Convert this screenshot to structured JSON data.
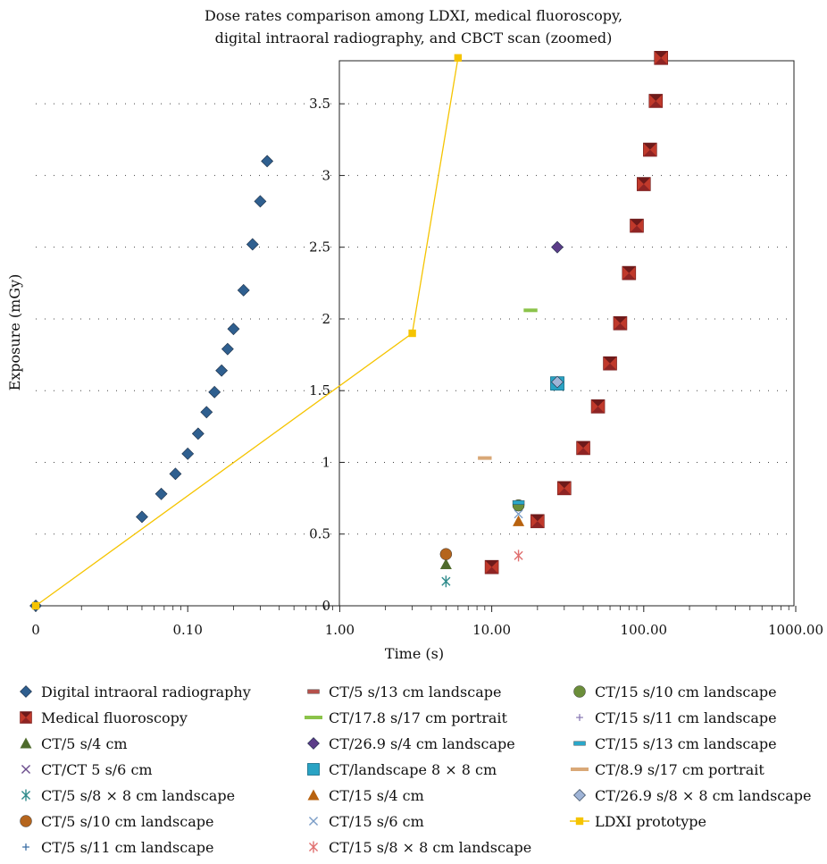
{
  "chart_data": {
    "type": "scatter",
    "title_lines": [
      "Dose rates comparison among LDXI, medical fluoroscopy,",
      "digital intraoral radiography, and CBCT scan (zoomed)"
    ],
    "xlabel": "Time (s)",
    "ylabel": "Exposure (mGy)",
    "x_scale": "log",
    "xlim": [
      0,
      1000
    ],
    "ylim": [
      0,
      3.8
    ],
    "x_ticks": [
      "0",
      "0.10",
      "1.00",
      "10.00",
      "100.00",
      "1000.00"
    ],
    "y_ticks": [
      "0",
      "0.5",
      "1",
      "1.5",
      "2",
      "2.5",
      "3",
      "3.5"
    ],
    "grid": "horizontal dotted",
    "legend_position": "bottom",
    "series": [
      {
        "name": "Digital intraoral radiography",
        "marker": "diamond",
        "color": "#2f5f8f",
        "points": [
          [
            0,
            0
          ],
          [
            0.05,
            0.62
          ],
          [
            0.067,
            0.78
          ],
          [
            0.083,
            0.92
          ],
          [
            0.1,
            1.06
          ],
          [
            0.117,
            1.2
          ],
          [
            0.133,
            1.35
          ],
          [
            0.15,
            1.49
          ],
          [
            0.167,
            1.64
          ],
          [
            0.183,
            1.79
          ],
          [
            0.2,
            1.93
          ],
          [
            0.233,
            2.2
          ],
          [
            0.267,
            2.52
          ],
          [
            0.3,
            2.82
          ],
          [
            0.333,
            3.1
          ]
        ]
      },
      {
        "name": "Medical fluoroscopy",
        "marker": "bowtie",
        "color": "#c0392b",
        "points": [
          [
            10,
            0.27
          ],
          [
            20,
            0.59
          ],
          [
            30,
            0.82
          ],
          [
            40,
            1.1
          ],
          [
            50,
            1.39
          ],
          [
            60,
            1.69
          ],
          [
            70,
            1.97
          ],
          [
            80,
            2.32
          ],
          [
            90,
            2.65
          ],
          [
            100,
            2.94
          ],
          [
            110,
            3.18
          ],
          [
            120,
            3.52
          ],
          [
            130,
            3.82
          ]
        ]
      },
      {
        "name": "CT/5 s/4 cm",
        "marker": "triangle",
        "color": "#4e6b2c",
        "points": [
          [
            5,
            0.29
          ]
        ]
      },
      {
        "name": "CT/CT 5 s/6 cm",
        "marker": "x",
        "color": "#6a4c8c",
        "points": []
      },
      {
        "name": "CT/5 s/8 × 8 cm landscape",
        "marker": "asterisk",
        "color": "#2e8b8b",
        "points": [
          [
            5,
            0.17
          ]
        ]
      },
      {
        "name": "CT/5 s/10 cm landscape",
        "marker": "circle",
        "color": "#b5651d",
        "points": [
          [
            5,
            0.36
          ]
        ]
      },
      {
        "name": "CT/5 s/11 cm landscape",
        "marker": "plus",
        "color": "#3a6ea5",
        "points": []
      },
      {
        "name": "CT/5 s/13 cm landscape",
        "marker": "bar",
        "color": "#b5504b",
        "points": []
      },
      {
        "name": "CT/17.8 s/17 cm portrait",
        "marker": "dash",
        "color": "#8bc34a",
        "points": [
          [
            18,
            2.06
          ]
        ]
      },
      {
        "name": "CT/26.9 s/4 cm landscape",
        "marker": "diamond",
        "color": "#5b3c88",
        "points": [
          [
            27,
            2.5
          ]
        ]
      },
      {
        "name": "CT/landscape 8 × 8 cm",
        "marker": "square",
        "color": "#29a3c4",
        "points": [
          [
            27,
            1.55
          ]
        ]
      },
      {
        "name": "CT/15 s/4 cm",
        "marker": "triangle",
        "color": "#b8620f",
        "points": [
          [
            15,
            0.59
          ]
        ]
      },
      {
        "name": "CT/15 s/6 cm",
        "marker": "x",
        "color": "#7a9cc6",
        "points": [
          [
            15,
            0.64
          ]
        ]
      },
      {
        "name": "CT/15 s/8 × 8 cm landscape",
        "marker": "asterisk",
        "color": "#e07070",
        "points": [
          [
            15,
            0.35
          ]
        ]
      },
      {
        "name": "CT/15 s/10 cm landscape",
        "marker": "circle",
        "color": "#6b8e3a",
        "points": [
          [
            15,
            0.7
          ]
        ]
      },
      {
        "name": "CT/15 s/11 cm landscape",
        "marker": "plus",
        "color": "#8a7ab5",
        "points": []
      },
      {
        "name": "CT/15 s/13 cm landscape",
        "marker": "bar",
        "color": "#2aa7c9",
        "points": [
          [
            15,
            0.72
          ]
        ]
      },
      {
        "name": "CT/8.9 s/17 cm portrait",
        "marker": "dash",
        "color": "#d9a877",
        "points": [
          [
            9,
            1.03
          ]
        ]
      },
      {
        "name": "CT/26.9 s/8 × 8 cm landscape",
        "marker": "diamond",
        "color": "#9fb4d6",
        "points": [
          [
            27,
            1.56
          ]
        ]
      },
      {
        "name": "LDXI prototype",
        "marker": "square-line",
        "color": "#f5c400",
        "points": [
          [
            0,
            0
          ],
          [
            3,
            1.9
          ],
          [
            6,
            3.82
          ]
        ]
      }
    ]
  }
}
